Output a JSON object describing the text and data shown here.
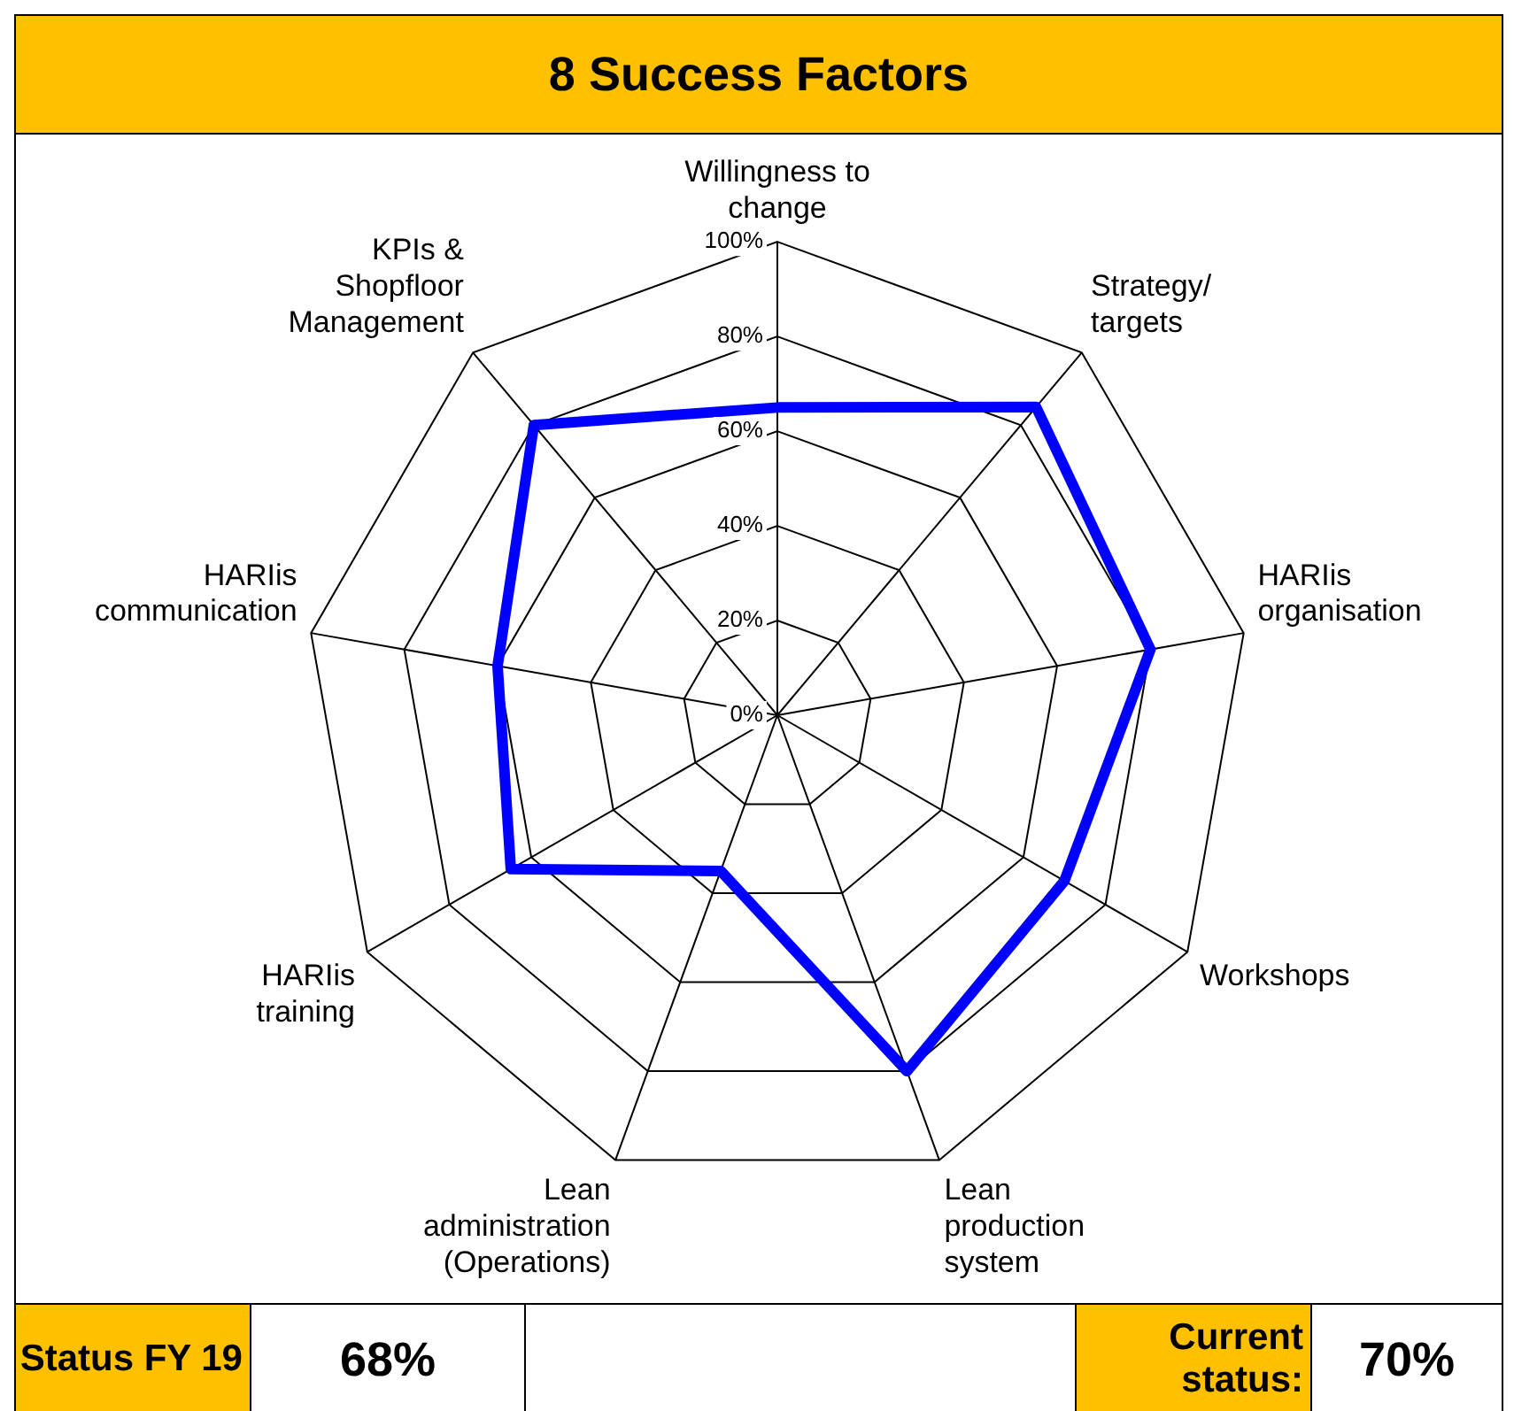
{
  "chart_data": {
    "type": "radar",
    "title": "8 Success Factors",
    "categories": [
      "Willingness to change",
      "Strategy/ targets",
      "HARIis organisation",
      "Workshops",
      "Lean production system",
      "Lean administration (Operations)",
      "HARIis training",
      "HARIis communication",
      "KPIs & Shopfloor Management"
    ],
    "series": [
      {
        "color": "#0000ff",
        "values": [
          65,
          85,
          80,
          70,
          80,
          35,
          65,
          60,
          80
        ]
      }
    ],
    "ylim": [
      0,
      100
    ],
    "yticks": [
      {
        "value": 0,
        "label": "0%"
      },
      {
        "value": 20,
        "label": "20%"
      },
      {
        "value": 40,
        "label": "40%"
      },
      {
        "value": 60,
        "label": "60%"
      },
      {
        "value": 80,
        "label": "80%"
      },
      {
        "value": 100,
        "label": "100%"
      }
    ],
    "grid": true,
    "legend": false,
    "marker": "none",
    "line_style": "solid",
    "annotations": [
      "Status FY 19",
      "68%",
      "Current status:",
      "70%"
    ]
  }
}
